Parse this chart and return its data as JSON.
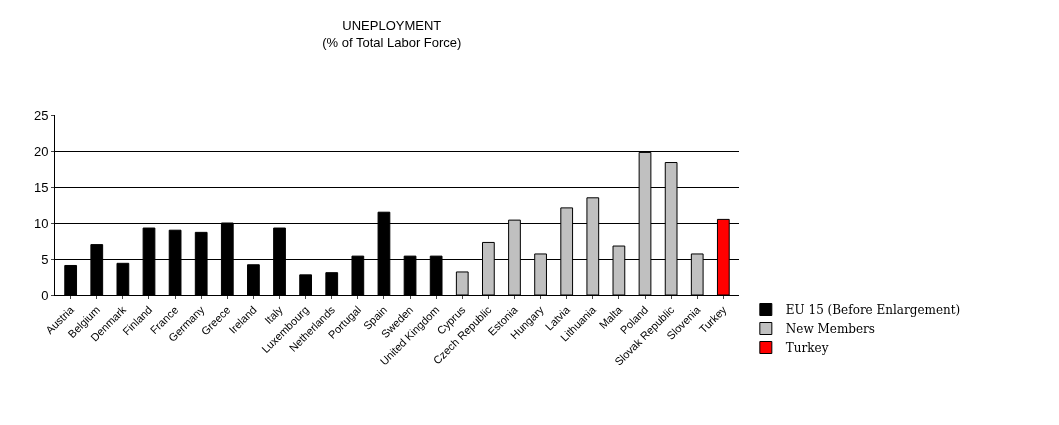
{
  "chart_data": {
    "type": "bar",
    "title": "UNEPLOYMENT",
    "subtitle": "(% of Total Labor Force)",
    "categories": [
      "Austria",
      "Belgium",
      "Denmark",
      "Finland",
      "France",
      "Germany",
      "Greece",
      "Ireland",
      "Italy",
      "Luxembourg",
      "Netherlands",
      "Portugal",
      "Spain",
      "Sweden",
      "United Kingdom",
      "Cyprus",
      "Czech Republic",
      "Estonia",
      "Hungary",
      "Latvia",
      "Lithuania",
      "Malta",
      "Poland",
      "Slovak Republic",
      "Slovenia",
      "Turkey"
    ],
    "series": [
      {
        "name": "EU 15 (Before Enlargement)",
        "color": "#000000",
        "values": [
          4.1,
          7.0,
          4.4,
          9.3,
          9.0,
          8.7,
          10.0,
          4.2,
          9.3,
          2.8,
          3.1,
          5.4,
          11.5,
          5.4,
          5.4,
          null,
          null,
          null,
          null,
          null,
          null,
          null,
          null,
          null,
          null,
          null
        ]
      },
      {
        "name": "New Members",
        "color": "#c0c0c0",
        "values": [
          null,
          null,
          null,
          null,
          null,
          null,
          null,
          null,
          null,
          null,
          null,
          null,
          null,
          null,
          null,
          3.2,
          7.3,
          10.4,
          5.7,
          12.1,
          13.5,
          6.8,
          19.8,
          18.4,
          5.7,
          null
        ]
      },
      {
        "name": "Turkey",
        "color": "#ff0000",
        "values": [
          null,
          null,
          null,
          null,
          null,
          null,
          null,
          null,
          null,
          null,
          null,
          null,
          null,
          null,
          null,
          null,
          null,
          null,
          null,
          null,
          null,
          null,
          null,
          null,
          null,
          10.5
        ]
      }
    ],
    "ylim": [
      0,
      25
    ],
    "yticks": [
      0,
      5,
      10,
      15,
      20,
      25
    ],
    "grid": "y",
    "legend": "bottom right"
  }
}
